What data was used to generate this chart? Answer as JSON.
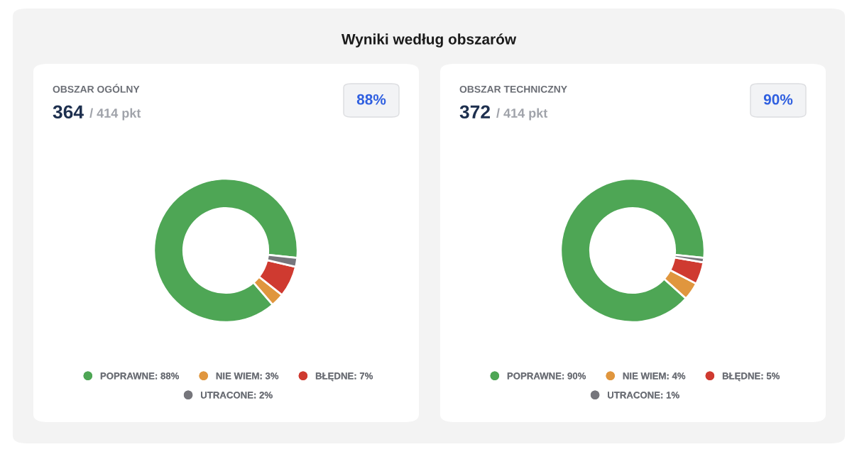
{
  "chart_data": [
    {
      "type": "other",
      "title": "Wyniki według obszarów"
    },
    {
      "type": "donut",
      "title": "OBSZAR OGÓLNY",
      "subtitle": "364",
      "annotations": [
        "/ 414 pkt",
        "88%"
      ],
      "categories": [
        "POPRAWNE: 88%",
        "NIE WIEM: 3%",
        "BŁĘDNE: 7%",
        "UTRACONE: 2%"
      ],
      "values": [
        88,
        3,
        7,
        2
      ],
      "colors": [
        "#4ea655",
        "#e0963e",
        "#cf3a30",
        "#76767c"
      ],
      "legend": "bottom"
    },
    {
      "type": "donut",
      "title": "OBSZAR TECHNICZNY",
      "subtitle": "372",
      "annotations": [
        "/ 414 pkt",
        "90%"
      ],
      "categories": [
        "POPRAWNE: 90%",
        "NIE WIEM: 4%",
        "BŁĘDNE: 5%",
        "UTRACONE: 1%"
      ],
      "values": [
        90,
        4,
        5,
        1
      ],
      "colors": [
        "#4ea655",
        "#e0963e",
        "#cf3a30",
        "#76767c"
      ],
      "legend": "bottom"
    }
  ]
}
